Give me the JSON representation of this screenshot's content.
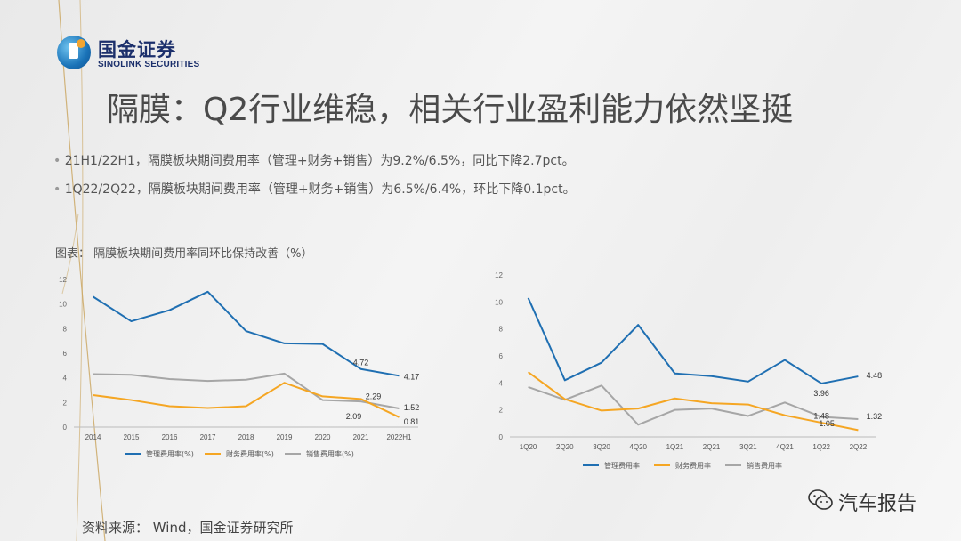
{
  "brand": {
    "name_cn": "国金证券",
    "name_en": "SINOLINK SECURITIES"
  },
  "title": "隔膜：Q2行业维稳，相关行业盈利能力依然坚挺",
  "bullets": [
    "21H1/22H1，隔膜板块期间费用率（管理+财务+销售）为9.2%/6.5%，同比下降2.7pct。",
    "1Q22/2Q22，隔膜板块期间费用率（管理+财务+销售）为6.5%/6.4%，环比下降0.1pct。"
  ],
  "chart_caption": "图表：  隔膜板块期间费用率同环比保持改善（%）",
  "source": "资料来源：  Wind，国金证券研究所",
  "watermark": "汽车报告",
  "colors": {
    "mgmt": "#1f6fb2",
    "fin": "#f5a623",
    "sales": "#a6a6a6"
  },
  "chart_data": [
    {
      "type": "line",
      "categories": [
        "2014",
        "2015",
        "2016",
        "2017",
        "2018",
        "2019",
        "2020",
        "2021",
        "2022H1"
      ],
      "ylim": [
        0,
        12
      ],
      "yticks": [
        0,
        2,
        4,
        6,
        8,
        10,
        12
      ],
      "legend_position": "bottom",
      "series": [
        {
          "name": "管理费用率(%)",
          "values": [
            10.6,
            8.6,
            9.5,
            11.0,
            7.8,
            6.8,
            6.75,
            4.72,
            4.17
          ]
        },
        {
          "name": "财务费用率(%)",
          "values": [
            2.6,
            2.2,
            1.7,
            1.55,
            1.7,
            3.6,
            2.5,
            2.29,
            0.81
          ]
        },
        {
          "name": "销售费用率(%)",
          "values": [
            4.3,
            4.25,
            3.9,
            3.75,
            3.85,
            4.35,
            2.2,
            2.09,
            1.52
          ]
        }
      ],
      "data_labels": [
        {
          "text": "4.72",
          "series": 0,
          "index": 7,
          "dx": 0,
          "dy": -4
        },
        {
          "text": "4.17",
          "series": 0,
          "index": 8,
          "dx": 14,
          "dy": 4
        },
        {
          "text": "2.29",
          "series": 1,
          "index": 7,
          "dx": 14,
          "dy": 0
        },
        {
          "text": "2.09",
          "series": 2,
          "index": 7,
          "dx": -8,
          "dy": 20
        },
        {
          "text": "1.52",
          "series": 2,
          "index": 8,
          "dx": 14,
          "dy": 2
        },
        {
          "text": "0.81",
          "series": 1,
          "index": 8,
          "dx": 14,
          "dy": 8
        }
      ]
    },
    {
      "type": "line",
      "categories": [
        "1Q20",
        "2Q20",
        "3Q20",
        "4Q20",
        "1Q21",
        "2Q21",
        "3Q21",
        "4Q21",
        "1Q22",
        "2Q22"
      ],
      "ylim": [
        0,
        12
      ],
      "yticks": [
        0,
        2,
        4,
        6,
        8,
        10,
        12
      ],
      "legend_position": "bottom",
      "series": [
        {
          "name": "管理费用率",
          "values": [
            10.3,
            4.2,
            5.5,
            8.3,
            4.7,
            4.5,
            4.1,
            5.7,
            3.96,
            4.48
          ]
        },
        {
          "name": "财务费用率",
          "values": [
            4.8,
            2.8,
            1.95,
            2.1,
            2.85,
            2.5,
            2.4,
            1.6,
            1.05,
            0.5
          ]
        },
        {
          "name": "销售费用率",
          "values": [
            3.7,
            2.75,
            3.8,
            0.9,
            2.0,
            2.1,
            1.55,
            2.55,
            1.48,
            1.32
          ]
        }
      ],
      "data_labels": [
        {
          "text": "3.96",
          "series": 0,
          "index": 8,
          "dx": 0,
          "dy": 14
        },
        {
          "text": "4.48",
          "series": 0,
          "index": 9,
          "dx": 18,
          "dy": 2
        },
        {
          "text": "1.48",
          "series": 2,
          "index": 8,
          "dx": 0,
          "dy": 2
        },
        {
          "text": "1.32",
          "series": 2,
          "index": 9,
          "dx": 18,
          "dy": 0
        },
        {
          "text": "1.05",
          "series": 1,
          "index": 8,
          "dx": 6,
          "dy": 4
        }
      ]
    }
  ]
}
